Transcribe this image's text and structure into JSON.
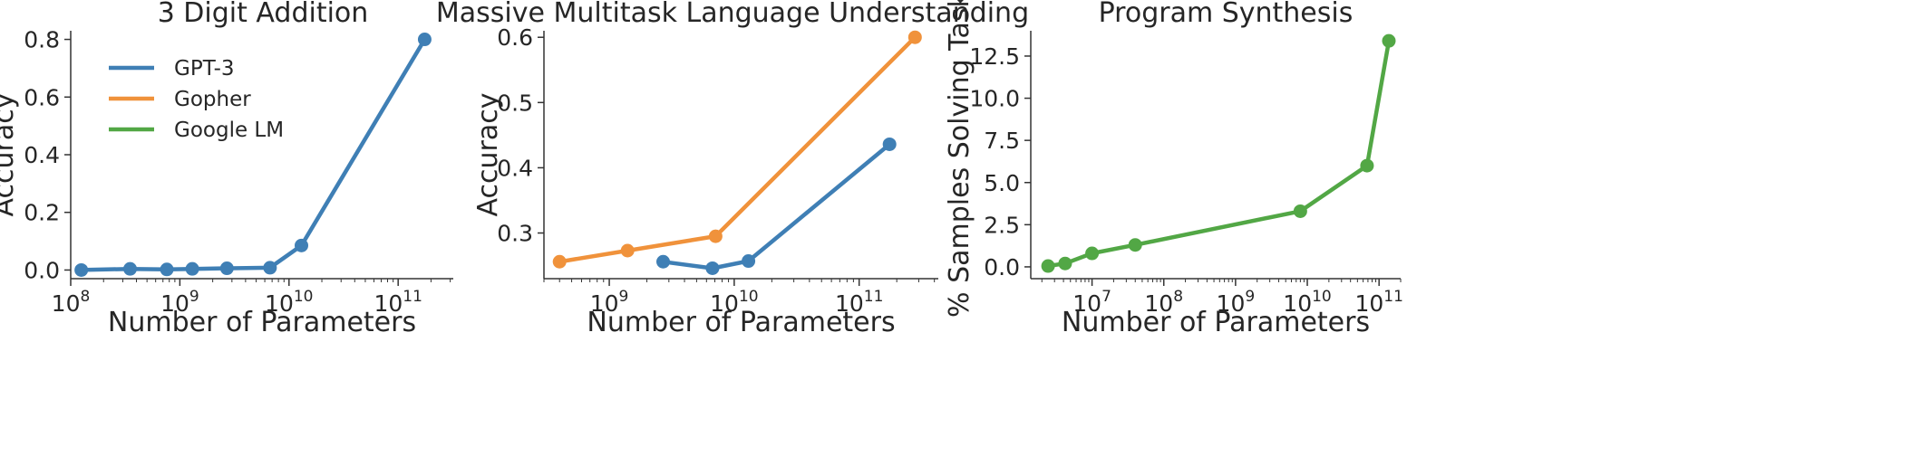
{
  "colors": {
    "blue": "#3f7fb5",
    "orange": "#f0923b",
    "green": "#52a745"
  },
  "chart_data": [
    {
      "type": "line",
      "title": "3 Digit Addition",
      "xlabel": "Number of Parameters",
      "ylabel": "Accuracy",
      "xscale": "log",
      "xlim": [
        100000000.0,
        320000000000.0
      ],
      "ylim": [
        -0.03,
        0.83
      ],
      "xticks": [
        {
          "value": 100000000.0,
          "base": "10",
          "exp": "8"
        },
        {
          "value": 1000000000.0,
          "base": "10",
          "exp": "9"
        },
        {
          "value": 10000000000.0,
          "base": "10",
          "exp": "10"
        },
        {
          "value": 100000000000.0,
          "base": "10",
          "exp": "11"
        }
      ],
      "yticks": [
        {
          "value": 0.0,
          "label": "0.0"
        },
        {
          "value": 0.2,
          "label": "0.2"
        },
        {
          "value": 0.4,
          "label": "0.4"
        },
        {
          "value": 0.6,
          "label": "0.6"
        },
        {
          "value": 0.8,
          "label": "0.8"
        }
      ],
      "legend": {
        "position": "top-left",
        "entries": [
          {
            "label": "GPT-3",
            "color": "#3f7fb5"
          },
          {
            "label": "Gopher",
            "color": "#f0923b"
          },
          {
            "label": "Google LM",
            "color": "#52a745"
          }
        ]
      },
      "series": [
        {
          "name": "GPT-3",
          "color": "#3f7fb5",
          "x": [
            125000000.0,
            350000000.0,
            760000000.0,
            1300000000.0,
            2700000000.0,
            6700000000.0,
            13000000000.0,
            175000000000.0
          ],
          "y": [
            0.0,
            0.004,
            0.002,
            0.004,
            0.006,
            0.008,
            0.085,
            0.8
          ]
        }
      ]
    },
    {
      "type": "line",
      "title": "Massive Multitask Language Understanding",
      "xlabel": "Number of Parameters",
      "ylabel": "Accuracy",
      "xscale": "log",
      "xlim": [
        300000000.0,
        430000000000.0
      ],
      "ylim": [
        0.23,
        0.61
      ],
      "xticks": [
        {
          "value": 1000000000.0,
          "base": "10",
          "exp": "9"
        },
        {
          "value": 10000000000.0,
          "base": "10",
          "exp": "10"
        },
        {
          "value": 100000000000.0,
          "base": "10",
          "exp": "11"
        }
      ],
      "yticks": [
        {
          "value": 0.3,
          "label": "0.3"
        },
        {
          "value": 0.4,
          "label": "0.4"
        },
        {
          "value": 0.5,
          "label": "0.5"
        },
        {
          "value": 0.6,
          "label": "0.6"
        }
      ],
      "series": [
        {
          "name": "GPT-3",
          "color": "#3f7fb5",
          "x": [
            2700000000.0,
            6700000000.0,
            13000000000.0,
            175000000000.0
          ],
          "y": [
            0.256,
            0.246,
            0.257,
            0.436
          ]
        },
        {
          "name": "Gopher",
          "color": "#f0923b",
          "x": [
            400000000.0,
            1400000000.0,
            7100000000.0,
            280000000000.0
          ],
          "y": [
            0.256,
            0.273,
            0.295,
            0.6
          ]
        }
      ]
    },
    {
      "type": "line",
      "title": "Program Synthesis",
      "xlabel": "Number of Parameters",
      "ylabel": "% Samples Solving Task",
      "xscale": "log",
      "xlim": [
        1400000.0,
        200000000000.0
      ],
      "ylim": [
        -0.7,
        14.0
      ],
      "xticks": [
        {
          "value": 10000000.0,
          "base": "10",
          "exp": "7"
        },
        {
          "value": 100000000.0,
          "base": "10",
          "exp": "8"
        },
        {
          "value": 1000000000.0,
          "base": "10",
          "exp": "9"
        },
        {
          "value": 10000000000.0,
          "base": "10",
          "exp": "10"
        },
        {
          "value": 100000000000.0,
          "base": "10",
          "exp": "11"
        }
      ],
      "yticks": [
        {
          "value": 0.0,
          "label": "0.0"
        },
        {
          "value": 2.5,
          "label": "2.5"
        },
        {
          "value": 5.0,
          "label": "5.0"
        },
        {
          "value": 7.5,
          "label": "7.5"
        },
        {
          "value": 10.0,
          "label": "10.0"
        },
        {
          "value": 12.5,
          "label": "12.5"
        }
      ],
      "series": [
        {
          "name": "Google LM",
          "color": "#52a745",
          "x": [
            2440000.0,
            4220000.0,
            10000000.0,
            40000000.0,
            8000000000.0,
            68000000000.0,
            137000000000.0
          ],
          "y": [
            0.05,
            0.2,
            0.8,
            1.3,
            3.3,
            6.0,
            13.4
          ]
        }
      ]
    }
  ]
}
